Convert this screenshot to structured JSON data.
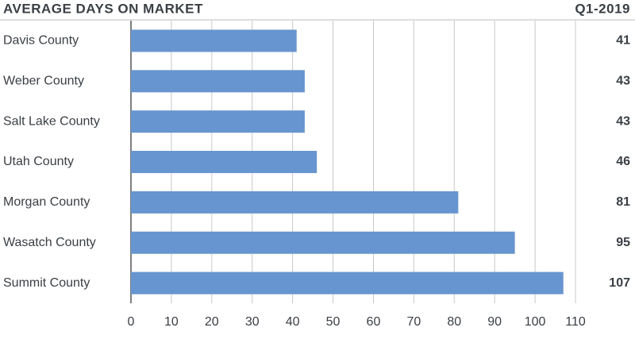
{
  "chart_data": {
    "type": "bar",
    "orientation": "horizontal",
    "title": "AVERAGE DAYS ON MARKET",
    "subtitle": "Q1-2019",
    "categories": [
      "Davis County",
      "Weber County",
      "Salt Lake County",
      "Utah County",
      "Morgan County",
      "Wasatch County",
      "Summit County"
    ],
    "values": [
      41,
      43,
      43,
      46,
      81,
      95,
      107
    ],
    "color": "#6795cf",
    "xlim": [
      0,
      110
    ],
    "xticks": [
      0,
      10,
      20,
      30,
      40,
      50,
      60,
      70,
      80,
      90,
      100,
      110
    ],
    "grid": true
  }
}
